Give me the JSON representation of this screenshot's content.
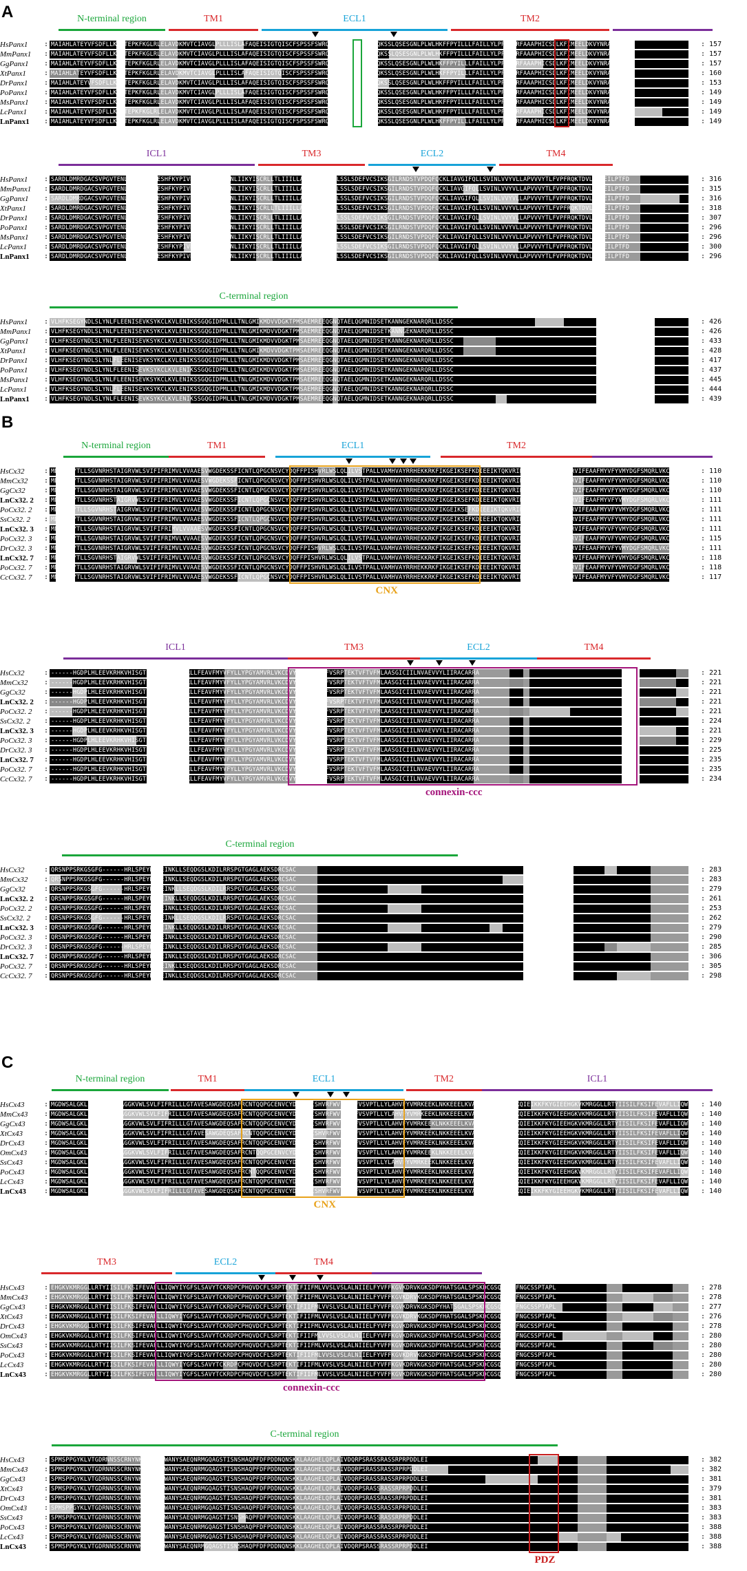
{
  "panels": [
    {
      "letter": "A",
      "blocks": [
        {
          "regions": [
            {
              "label": "N-terminal region",
              "color": "#1aa63a"
            },
            {
              "label": "TM1",
              "color": "#d9282b"
            },
            {
              "label": "ECL1",
              "color": "#17a3d8"
            },
            {
              "label": "TM2",
              "color": "#d9282b"
            },
            {
              "label": "",
              "color": "#7b2e9a"
            }
          ],
          "rows": [
            {
              "name": "HsPanx1",
              "end": "157"
            },
            {
              "name": "MmPanx1",
              "end": "157"
            },
            {
              "name": "GgPanx1",
              "end": "157"
            },
            {
              "name": "XtPanx1",
              "end": "160"
            },
            {
              "name": "DrPanx1",
              "end": "153"
            },
            {
              "name": "PoPanx1",
              "end": "149"
            },
            {
              "name": "MsPanx1",
              "end": "149"
            },
            {
              "name": "LcPanx1",
              "end": "149"
            },
            {
              "name": "LnPanx1",
              "end": "149",
              "bold": true
            }
          ],
          "seq": "MAIAHLATEYVFSDFLLKEPTEPKFKGLRLELAVDKMVTCIAVGLPLLLISLAFAQEISIGTQISCFSPSSFSWRQAAFVDSYCWAAVQQKSSLQSESGNLPLWLHKFFPYILLLFAILLYLPPLFWRFAAAPHICSDLKFIMEELDKVYNRAIKAAKS",
          "end_label": ""
        },
        {
          "regions": [
            {
              "label": "ICL1",
              "color": "#7b2e9a"
            },
            {
              "label": "TM3",
              "color": "#d9282b"
            },
            {
              "label": "ECL2",
              "color": "#17a3d8"
            },
            {
              "label": "TM4",
              "color": "#d9282b"
            }
          ],
          "rows": [
            {
              "name": "HsPanx1",
              "end": "316"
            },
            {
              "name": "MmPanx1",
              "end": "315"
            },
            {
              "name": "GgPanx1",
              "end": "316"
            },
            {
              "name": "XtPanx1",
              "end": "318"
            },
            {
              "name": "DrPanx1",
              "end": "307"
            },
            {
              "name": "PoPanx1",
              "end": "296"
            },
            {
              "name": "MsPanx1",
              "end": "296"
            },
            {
              "name": "LcPanx1",
              "end": "300"
            },
            {
              "name": "LnPanx1",
              "end": "296",
              "bold": true
            }
          ],
          "seq": "SARDLDMRDGACSVPGVTENLGQSLWEVSESHFKYPIVEQYLKTKKNSNNLIIKYISCRLLTLIIILLACIYLGYYFSLSSLSDEFVCSIKSGILRNDSTVPDQFQCKLIAVGIFQLLSVINLVVYVLLAPVVVYTLFVPFRQKTDVLKVYEILPTFD",
          "end_label": ""
        },
        {
          "regions": [
            {
              "label": "C-terminal region",
              "color": "#1aa63a"
            }
          ],
          "rows": [
            {
              "name": "HsPanx1",
              "end": "426"
            },
            {
              "name": "MmPanx1",
              "end": "426"
            },
            {
              "name": "GgPanx1",
              "end": "433"
            },
            {
              "name": "XtPanx1",
              "end": "428"
            },
            {
              "name": "DrPanx1",
              "end": "417"
            },
            {
              "name": "PoPanx1",
              "end": "437"
            },
            {
              "name": "MsPanx1",
              "end": "445"
            },
            {
              "name": "LcPanx1",
              "end": "444"
            },
            {
              "name": "LnPanx1",
              "end": "439",
              "bold": true
            }
          ],
          "seq": "VLHFKSEGYNDLSLYNLFLEENISEVKSYKCLKVLENIKSSGQGIDPMLLLTNLGMIKMDVVDGKTPMSAEMREEQGNQTAELQGMNIDSETKANNGEKNARQRLLDSSC",
          "end_label": ""
        }
      ]
    },
    {
      "letter": "B",
      "blocks": [
        {
          "regions": [
            {
              "label": "N-terminal region",
              "color": "#1aa63a"
            },
            {
              "label": "TM1",
              "color": "#d9282b"
            },
            {
              "label": "ECL1",
              "color": "#17a3d8"
            },
            {
              "label": "TM2",
              "color": "#d9282b"
            },
            {
              "label": "",
              "color": "#7b2e9a"
            }
          ],
          "rows": [
            {
              "name": "HsCx32",
              "end": "110"
            },
            {
              "name": "MmCx32",
              "end": "110"
            },
            {
              "name": "GgCx32",
              "end": "110"
            },
            {
              "name": "LnCx32. 2",
              "end": "111",
              "bold": true
            },
            {
              "name": "PoCx32. 2",
              "end": "111"
            },
            {
              "name": "SsCx32. 2",
              "end": "111"
            },
            {
              "name": "LnCx32. 3",
              "end": "111",
              "bold": true
            },
            {
              "name": "PoCx32. 3",
              "end": "115"
            },
            {
              "name": "DrCx32. 3",
              "end": "111"
            },
            {
              "name": "LnCx32. 7",
              "end": "118",
              "bold": true
            },
            {
              "name": "PoCx32. 7",
              "end": "118"
            },
            {
              "name": "CcCx32. 7",
              "end": "117"
            }
          ],
          "seq": "MNWTGLYTLLSGVNRHSTAIGRVWLSVIFIFRIMVLVVAAESVWGDEKSSFICNTLQPGCNSVCYDQFFPISHVRLWSLQLILVSTPALLVAMHVAYRRHEKKRKFIKGEIKSEFKDIEEIKTQKVRIEGSLWWTYTSSIFFRVIFEAAFMYVFYVMYDGFSMQRLVKCNAWPCPNTVDCFVSRPTEKTVFTVFMIAVSGICILLNVTELCYLLIRYCSGKSKKPV",
          "end_label": ""
        },
        {
          "regions": [
            {
              "label": "ICL1",
              "color": "#7b2e9a"
            },
            {
              "label": "TM3",
              "color": "#d9282b"
            },
            {
              "label": "ECL2",
              "color": "#17a3d8"
            },
            {
              "label": "TM4",
              "color": "#d9282b"
            }
          ],
          "rows": [
            {
              "name": "HsCx32",
              "end": "221"
            },
            {
              "name": "MmCx32",
              "end": "221"
            },
            {
              "name": "GgCx32",
              "end": "221"
            },
            {
              "name": "LnCx32. 2",
              "end": "221",
              "bold": true
            },
            {
              "name": "PoCx32. 2",
              "end": "221"
            },
            {
              "name": "SsCx32. 2",
              "end": "224"
            },
            {
              "name": "LnCx32. 3",
              "end": "221",
              "bold": true
            },
            {
              "name": "PoCx32. 3",
              "end": "229"
            },
            {
              "name": "DrCx32. 3",
              "end": "225"
            },
            {
              "name": "LnCx32. 7",
              "end": "235",
              "bold": true
            },
            {
              "name": "PoCx32. 7",
              "end": "235"
            },
            {
              "name": "CcCx32. 7",
              "end": "234"
            }
          ],
          "seq": "------HGDPLHLEEVKRHKVHISGTLWWTYVISVVFRLLFEAVFMYVFYLLYPGYAMVRLVKCDVYPCPNTVDCFVSRPTEKTVFTVFMLAASGICIILNVAEVVYLIIRACARRA",
          "end_label": ""
        },
        {
          "regions": [
            {
              "label": "C-terminal region",
              "color": "#1aa63a"
            }
          ],
          "rows": [
            {
              "name": "HsCx32",
              "end": "283"
            },
            {
              "name": "MmCx32",
              "end": "283"
            },
            {
              "name": "GgCx32",
              "end": "279"
            },
            {
              "name": "LnCx32. 2",
              "end": "261",
              "bold": true
            },
            {
              "name": "PoCx32. 2",
              "end": "253"
            },
            {
              "name": "SsCx32. 2",
              "end": "262"
            },
            {
              "name": "LnCx32. 3",
              "end": "279",
              "bold": true
            },
            {
              "name": "PoCx32. 3",
              "end": "290"
            },
            {
              "name": "DrCx32. 3",
              "end": "285"
            },
            {
              "name": "LnCx32. 7",
              "end": "306",
              "bold": true
            },
            {
              "name": "PoCx32. 7",
              "end": "305"
            },
            {
              "name": "CcCx32. 7",
              "end": "298"
            }
          ],
          "seq": "QRSNPPSRKGSGFG------HRLSPEYKQNEINKLLSEQDGSLKDILRRSPGTGAGLAEKSDRCSAC",
          "end_label": ""
        }
      ],
      "frames": [
        {
          "label": "CNX",
          "color": "#e8a21a"
        },
        {
          "label": "connexin-ccc",
          "color": "#a3137a"
        }
      ]
    },
    {
      "letter": "C",
      "blocks": [
        {
          "regions": [
            {
              "label": "N-terminal region",
              "color": "#1aa63a"
            },
            {
              "label": "TM1",
              "color": "#d9282b"
            },
            {
              "label": "ECL1",
              "color": "#17a3d8"
            },
            {
              "label": "TM2",
              "color": "#d9282b"
            },
            {
              "label": "ICL1",
              "color": "#7b2e9a"
            }
          ],
          "rows": [
            {
              "name": "HsCx43",
              "end": "140"
            },
            {
              "name": "MmCx43",
              "end": "140"
            },
            {
              "name": "GgCx43",
              "end": "140"
            },
            {
              "name": "XtCx43",
              "end": "140"
            },
            {
              "name": "DrCx43",
              "end": "140"
            },
            {
              "name": "OmCx43",
              "end": "140"
            },
            {
              "name": "SsCx43",
              "end": "140"
            },
            {
              "name": "PoCx43",
              "end": "140"
            },
            {
              "name": "LcCx43",
              "end": "140"
            },
            {
              "name": "LnCx43",
              "end": "140",
              "bold": true
            }
          ],
          "seq": "MGDWSALGKLLDKVQAYSTAGGKVWLSVLFIFRILLLGTAVESAWGDEQSAFRCNTQQPGCENVCYDKSFPISHVRFWVLQIIFVSVPTLLYLAHVFYVMRKEEKLNKKEEELKVAQTDGVNVDMHLKQIEIKKFKYGIEEHGKVKMRGGLLRTYIISILFKSIFEVAFLLIQWYIYGFSLSAVYTCKRDPCPHQVDCFLSRPTEKTIFIIFMLVVSLVSLALNIIELFYVF",
          "end_label": ""
        },
        {
          "regions": [
            {
              "label": "TM3",
              "color": "#d9282b"
            },
            {
              "label": "ECL2",
              "color": "#17a3d8"
            },
            {
              "label": "TM4",
              "color": "#d9282b"
            },
            {
              "label": "",
              "color": "#7b2e9a"
            }
          ],
          "rows": [
            {
              "name": "HsCx43",
              "end": "278"
            },
            {
              "name": "MmCx43",
              "end": "278"
            },
            {
              "name": "GgCx43",
              "end": "277"
            },
            {
              "name": "XtCx43",
              "end": "276"
            },
            {
              "name": "DrCx43",
              "end": "278"
            },
            {
              "name": "OmCx43",
              "end": "280"
            },
            {
              "name": "SsCx43",
              "end": "280"
            },
            {
              "name": "PoCx43",
              "end": "280"
            },
            {
              "name": "LcCx43",
              "end": "280"
            },
            {
              "name": "LnCx43",
              "end": "280",
              "bold": true
            }
          ],
          "seq": "EHGKVKMRGGLLRTYIISILFKSIFEVAFLLIQWYIYGFSLSAVYTCKRDPCPHQVDCFLSRPTEKTIFIIFMLVVSLVSLALNIIELFYVFFKGVKDRVKGKSDPYHATSGALSPSKDCGSQKYAYFNGCSSPTAPL",
          "end_label": ""
        },
        {
          "regions": [
            {
              "label": "C-terminal region",
              "color": "#1aa63a"
            }
          ],
          "rows": [
            {
              "name": "HsCx43",
              "end": "382"
            },
            {
              "name": "MmCx43",
              "end": "382"
            },
            {
              "name": "GgCx43",
              "end": "381"
            },
            {
              "name": "XtCx43",
              "end": "379"
            },
            {
              "name": "DrCx43",
              "end": "381"
            },
            {
              "name": "OmCx43",
              "end": "383"
            },
            {
              "name": "SsCx43",
              "end": "383"
            },
            {
              "name": "PoCx43",
              "end": "388"
            },
            {
              "name": "LcCx43",
              "end": "388"
            },
            {
              "name": "LnCx43",
              "end": "388",
              "bold": true
            }
          ],
          "seq": "SPMSPPGYKLVTGDRNNSSCRNYNKQASEQNWANYSAEQNRMGQAGSTISNSHAQPFDFPDDNQNSKKLAAGHELQPLAIVDQRPSRASSRASSRPRPDDLEI",
          "end_label": ""
        }
      ],
      "frames": [
        {
          "label": "CNX",
          "color": "#e8a21a"
        },
        {
          "label": "connexin-ccc",
          "color": "#a3137a"
        },
        {
          "label": "PDZ",
          "color": "#c81e1e"
        }
      ]
    }
  ]
}
